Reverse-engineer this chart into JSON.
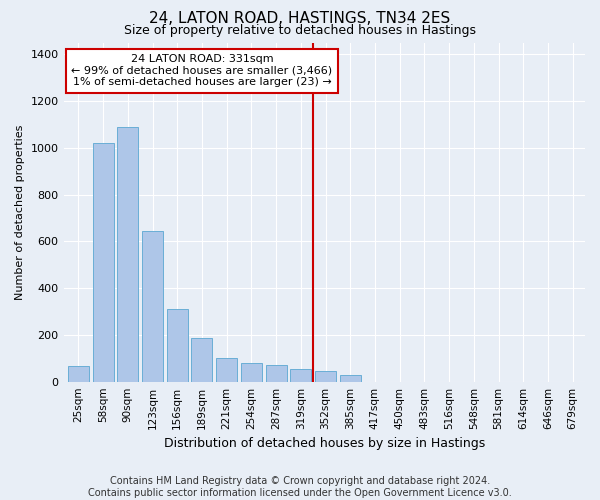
{
  "title": "24, LATON ROAD, HASTINGS, TN34 2ES",
  "subtitle": "Size of property relative to detached houses in Hastings",
  "xlabel": "Distribution of detached houses by size in Hastings",
  "ylabel": "Number of detached properties",
  "categories": [
    "25sqm",
    "58sqm",
    "90sqm",
    "123sqm",
    "156sqm",
    "189sqm",
    "221sqm",
    "254sqm",
    "287sqm",
    "319sqm",
    "352sqm",
    "385sqm",
    "417sqm",
    "450sqm",
    "483sqm",
    "516sqm",
    "548sqm",
    "581sqm",
    "614sqm",
    "646sqm",
    "679sqm"
  ],
  "values": [
    65,
    1020,
    1090,
    645,
    310,
    185,
    100,
    80,
    70,
    55,
    45,
    30,
    0,
    0,
    0,
    0,
    0,
    0,
    0,
    0,
    0
  ],
  "bar_color": "#aec6e8",
  "bar_edge_color": "#6aaed6",
  "vline_color": "#cc0000",
  "annotation_text": "24 LATON ROAD: 331sqm\n← 99% of detached houses are smaller (3,466)\n1% of semi-detached houses are larger (23) →",
  "annotation_box_color": "#ffffff",
  "annotation_box_edge": "#cc0000",
  "ylim": [
    0,
    1450
  ],
  "yticks": [
    0,
    200,
    400,
    600,
    800,
    1000,
    1200,
    1400
  ],
  "background_color": "#e8eef6",
  "grid_color": "#ffffff",
  "footer_line1": "Contains HM Land Registry data © Crown copyright and database right 2024.",
  "footer_line2": "Contains public sector information licensed under the Open Government Licence v3.0.",
  "title_fontsize": 11,
  "subtitle_fontsize": 9,
  "annotation_fontsize": 8,
  "footer_fontsize": 7,
  "ylabel_fontsize": 8,
  "xlabel_fontsize": 9
}
